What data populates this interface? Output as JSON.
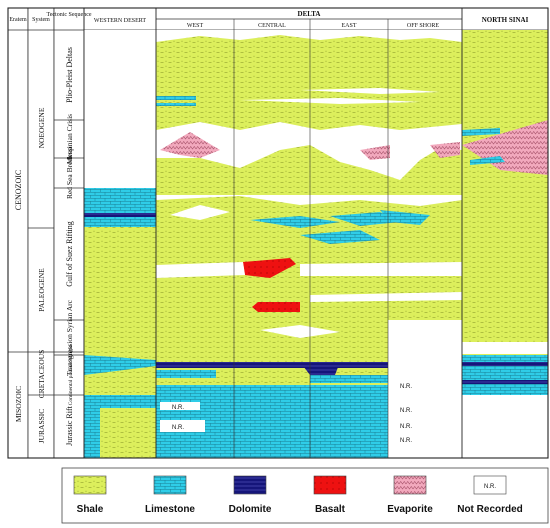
{
  "header": {
    "eratem": "Eratem",
    "system": "System",
    "tectonic_sequence": "Tectonic Sequence",
    "western_desert": "WESTERN DESERT",
    "delta": "DELTA",
    "delta_columns": [
      "WEST",
      "CENTRAL",
      "EAST",
      "OFF SHORE"
    ],
    "north_sinai": "NORTH SINAI"
  },
  "eras": [
    "CENOZOIC",
    "MISOZOIC"
  ],
  "systems": [
    "NOEOGENE",
    "PALEOGENE",
    "CRETACEOUS",
    "JURASSIC"
  ],
  "sequences": [
    "Plio-Pleist Deltas",
    "Messinian Crisis",
    "Red Sea Breakup",
    "Gulf of Suez Rifting",
    "Transgression Syrian Arc",
    "Continental passive Margin",
    "Jurassic Rift"
  ],
  "not_recorded_mark": "N.R.",
  "legend": {
    "items": [
      {
        "label": "Shale",
        "color": "#dcef5c"
      },
      {
        "label": "Limestone",
        "color": "#2fcde8"
      },
      {
        "label": "Dolomite",
        "color": "#15157a"
      },
      {
        "label": "Basalt",
        "color": "#ee1111"
      },
      {
        "label": "Evaporite",
        "color": "#f2a9bd"
      },
      {
        "label": "Not Recorded",
        "symbol": "N.R.",
        "color": "#ffffff"
      }
    ]
  },
  "colors": {
    "shale": "#dcef5c",
    "limestone": "#2fcde8",
    "dolomite": "#15157a",
    "basalt": "#ee1111",
    "evaporite": "#f2a9bd",
    "not_recorded": "#ffffff"
  }
}
